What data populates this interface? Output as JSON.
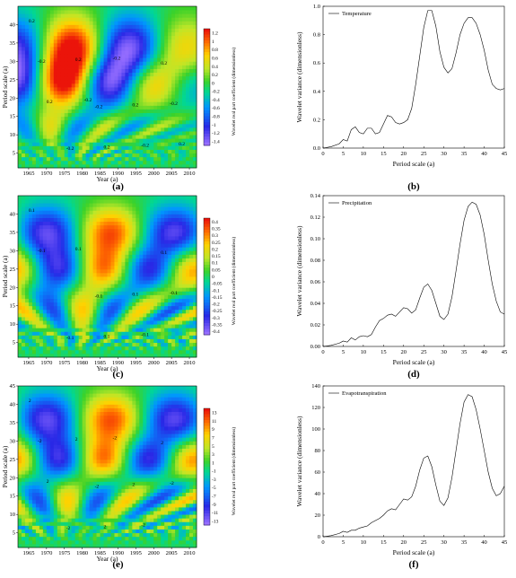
{
  "colors": {
    "scale_high": "#ff0000",
    "scale_mid": "#00cc00",
    "scale_low": "#9966ff",
    "axis": "#000000",
    "line": "#000000"
  },
  "panel_letters": [
    "(a)",
    "(b)",
    "(c)",
    "(d)",
    "(e)",
    "(f)"
  ],
  "chart_data": [
    {
      "id": "a",
      "type": "heatmap",
      "xlabel": "Year (a)",
      "ylabel": "Period scale (a)",
      "colorbar_label": "Wavelet real part coefficient (dimensionless)",
      "xticks": [
        "1965",
        "1970",
        "1975",
        "1980",
        "1985",
        "1990",
        "1995",
        "2000",
        "2005",
        "2010"
      ],
      "yticks": [
        "5",
        "10",
        "15",
        "20",
        "25",
        "30",
        "35",
        "40"
      ],
      "xlim": [
        1962,
        2012
      ],
      "ylim": [
        1,
        45
      ],
      "colorbar_ticks": [
        "1.2",
        "1",
        "0.8",
        "0.6",
        "0.4",
        "0.2",
        "0",
        "-0.2",
        "-0.4",
        "-0.6",
        "-0.8",
        "-1",
        "-1.2",
        "-1.4"
      ],
      "contour_labels": [
        "0.2",
        "-0.2",
        "0.2",
        "-0.2",
        "0.2",
        "-0.2",
        "0.2",
        "-0.2",
        "0.2",
        "-0.2",
        "0.2",
        "-0.2",
        "0.2",
        "-0.2"
      ]
    },
    {
      "id": "b",
      "type": "line",
      "legend": "Temperature",
      "legend_position": "top-left",
      "xlabel": "Period scale (a)",
      "ylabel": "Wavelet variance (dimensionless)",
      "xlim": [
        0,
        45
      ],
      "ylim": [
        0,
        1
      ],
      "xticks": [
        "0",
        "5",
        "10",
        "15",
        "20",
        "25",
        "30",
        "35",
        "40",
        "45"
      ],
      "yticks": [
        "0.0",
        "0.2",
        "0.4",
        "0.6",
        "0.8",
        "1.0"
      ],
      "x": [
        0,
        2,
        4,
        5,
        6,
        7,
        8,
        9,
        10,
        11,
        12,
        13,
        14,
        15,
        16,
        17,
        18,
        19,
        20,
        21,
        22,
        23,
        24,
        25,
        26,
        27,
        28,
        29,
        30,
        31,
        32,
        33,
        34,
        35,
        36,
        37,
        38,
        39,
        40,
        41,
        42,
        43,
        44,
        45
      ],
      "y": [
        0,
        0.01,
        0.03,
        0.06,
        0.05,
        0.13,
        0.15,
        0.11,
        0.1,
        0.14,
        0.14,
        0.1,
        0.11,
        0.17,
        0.23,
        0.22,
        0.18,
        0.17,
        0.18,
        0.2,
        0.28,
        0.45,
        0.65,
        0.85,
        0.97,
        0.97,
        0.86,
        0.68,
        0.57,
        0.53,
        0.56,
        0.67,
        0.8,
        0.88,
        0.92,
        0.92,
        0.88,
        0.8,
        0.69,
        0.55,
        0.45,
        0.42,
        0.41,
        0.42
      ]
    },
    {
      "id": "c",
      "type": "heatmap",
      "xlabel": "Year (a)",
      "ylabel": "Period scale (a)",
      "colorbar_label": "Wavelet real part coefficient (dimensionless)",
      "xticks": [
        "1965",
        "1970",
        "1975",
        "1980",
        "1985",
        "1990",
        "1995",
        "2000",
        "2005",
        "2010"
      ],
      "yticks": [
        "5",
        "10",
        "15",
        "20",
        "25",
        "30",
        "35",
        "40"
      ],
      "xlim": [
        1962,
        2012
      ],
      "ylim": [
        1,
        45
      ],
      "colorbar_ticks": [
        "0.4",
        "0.35",
        "0.3",
        "0.25",
        "0.2",
        "0.15",
        "0.1",
        "0.05",
        "0",
        "-0.05",
        "-0.1",
        "-0.15",
        "-0.2",
        "-0.25",
        "-0.3",
        "-0.35",
        "-0.4"
      ],
      "contour_labels": [
        "0.1",
        "-0.1",
        "0.1",
        "-0.1",
        "0.1",
        "-0.1",
        "0.1",
        "-0.1",
        "0.1",
        "-0.1"
      ]
    },
    {
      "id": "d",
      "type": "line",
      "legend": "Precipitation",
      "legend_position": "top-left",
      "xlabel": "Period scale (a)",
      "ylabel": "Wavelet variance (dimensionless)",
      "xlim": [
        0,
        45
      ],
      "ylim": [
        0,
        0.14
      ],
      "xticks": [
        "0",
        "5",
        "10",
        "15",
        "20",
        "25",
        "30",
        "35",
        "40",
        "45"
      ],
      "yticks": [
        "0.00",
        "0.02",
        "0.04",
        "0.06",
        "0.08",
        "0.10",
        "0.12",
        "0.14"
      ],
      "x": [
        0,
        2,
        4,
        5,
        6,
        7,
        8,
        9,
        10,
        11,
        12,
        13,
        14,
        15,
        16,
        17,
        18,
        19,
        20,
        21,
        22,
        23,
        24,
        25,
        26,
        27,
        28,
        29,
        30,
        31,
        32,
        33,
        34,
        35,
        36,
        37,
        38,
        39,
        40,
        41,
        42,
        43,
        44,
        45
      ],
      "y": [
        0,
        0.001,
        0.003,
        0.005,
        0.004,
        0.008,
        0.006,
        0.009,
        0.01,
        0.009,
        0.011,
        0.018,
        0.024,
        0.026,
        0.029,
        0.03,
        0.028,
        0.032,
        0.036,
        0.035,
        0.031,
        0.034,
        0.045,
        0.055,
        0.058,
        0.052,
        0.04,
        0.028,
        0.025,
        0.03,
        0.046,
        0.07,
        0.095,
        0.117,
        0.13,
        0.134,
        0.132,
        0.122,
        0.104,
        0.08,
        0.058,
        0.042,
        0.032,
        0.03
      ]
    },
    {
      "id": "e",
      "type": "heatmap",
      "xlabel": "Year (a)",
      "ylabel": "Period scale (a)",
      "colorbar_label": "Wavelet real part coefficient (dimensionless)",
      "xticks": [
        "1965",
        "1970",
        "1975",
        "1980",
        "1985",
        "1990",
        "1995",
        "2000",
        "2005",
        "2010"
      ],
      "yticks": [
        "5",
        "10",
        "15",
        "20",
        "25",
        "30",
        "35",
        "40",
        "45"
      ],
      "xlim": [
        1962,
        2012
      ],
      "ylim": [
        1,
        45
      ],
      "colorbar_ticks": [
        "13",
        "11",
        "9",
        "7",
        "5",
        "3",
        "1",
        "-1",
        "-3",
        "-5",
        "-7",
        "-9",
        "-11",
        "-13"
      ],
      "contour_labels": [
        "2",
        "-2",
        "2",
        "-2",
        "2",
        "-2",
        "2",
        "-2",
        "2",
        "-2",
        "2",
        "-2"
      ]
    },
    {
      "id": "f",
      "type": "line",
      "legend": "Evapotranspiration",
      "legend_position": "top-left",
      "xlabel": "Period scale (a)",
      "ylabel": "Wavelet variance (dimensionless)",
      "xlim": [
        0,
        45
      ],
      "ylim": [
        0,
        140
      ],
      "xticks": [
        "0",
        "5",
        "10",
        "15",
        "20",
        "25",
        "30",
        "35",
        "40",
        "45"
      ],
      "yticks": [
        "0",
        "20",
        "40",
        "60",
        "80",
        "100",
        "120",
        "140"
      ],
      "x": [
        0,
        2,
        4,
        5,
        6,
        7,
        8,
        9,
        10,
        11,
        12,
        13,
        14,
        15,
        16,
        17,
        18,
        19,
        20,
        21,
        22,
        23,
        24,
        25,
        26,
        27,
        28,
        29,
        30,
        31,
        32,
        33,
        34,
        35,
        36,
        37,
        38,
        39,
        40,
        41,
        42,
        43,
        44,
        45
      ],
      "y": [
        0,
        1,
        3,
        5,
        4,
        6,
        6,
        8,
        9,
        10,
        13,
        15,
        17,
        20,
        24,
        26,
        25,
        30,
        35,
        34,
        37,
        47,
        62,
        73,
        75,
        65,
        48,
        33,
        29,
        36,
        55,
        80,
        105,
        125,
        132,
        130,
        118,
        100,
        80,
        60,
        45,
        38,
        40,
        47
      ]
    }
  ]
}
